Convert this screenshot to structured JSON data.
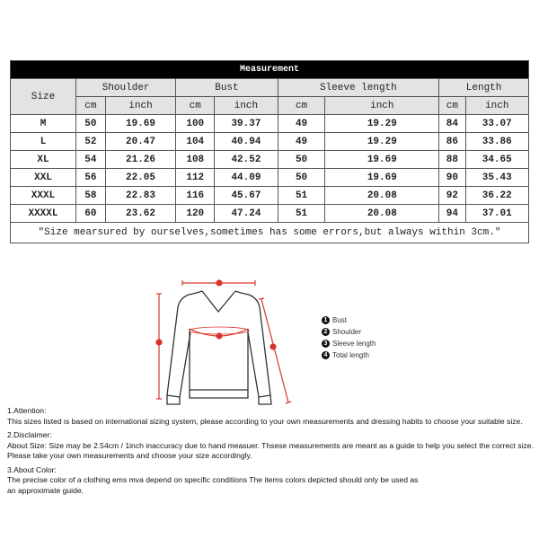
{
  "table": {
    "title": "Measurement",
    "size_label": "Size",
    "groups": [
      "Shoulder",
      "Bust",
      "Sleeve length",
      "Length"
    ],
    "units": [
      "cm",
      "inch"
    ],
    "rows": [
      [
        "M",
        "50",
        "19.69",
        "100",
        "39.37",
        "49",
        "19.29",
        "84",
        "33.07"
      ],
      [
        "L",
        "52",
        "20.47",
        "104",
        "40.94",
        "49",
        "19.29",
        "86",
        "33.86"
      ],
      [
        "XL",
        "54",
        "21.26",
        "108",
        "42.52",
        "50",
        "19.69",
        "88",
        "34.65"
      ],
      [
        "XXL",
        "56",
        "22.05",
        "112",
        "44.09",
        "50",
        "19.69",
        "90",
        "35.43"
      ],
      [
        "XXXL",
        "58",
        "22.83",
        "116",
        "45.67",
        "51",
        "20.08",
        "92",
        "36.22"
      ],
      [
        "XXXXL",
        "60",
        "23.62",
        "120",
        "47.24",
        "51",
        "20.08",
        "94",
        "37.01"
      ]
    ],
    "note": "\"Size mearsured by ourselves,sometimes has some errors,but always within 3cm.\""
  },
  "diagram": {
    "line_color": "#d9342b",
    "legend": [
      {
        "num": "1",
        "label": "Bust"
      },
      {
        "num": "2",
        "label": "Shoulder"
      },
      {
        "num": "3",
        "label": "Sleeve length"
      },
      {
        "num": "4",
        "label": "Total length"
      }
    ]
  },
  "notes": [
    {
      "heading": "1.Attention:",
      "lines": [
        "This sizes listed is based on international sizing system, please according to your own measurements and dressing habits to choose your suitable size."
      ]
    },
    {
      "heading": "2.Disclaimer:",
      "lines": [
        "About Size: Size may be 2.54cm / 1inch inaccuracy due to hand measuer. Thsese measurements are meant as a guide to help you select the correct size.",
        "Please take your own measurements and choose your size accordingly."
      ]
    },
    {
      "heading": "3.About Color:",
      "lines": [
        "The precise color of a clothing ems mva depend on specific conditions The items colors depicted should only be used as",
        "an approximate guide."
      ]
    }
  ]
}
